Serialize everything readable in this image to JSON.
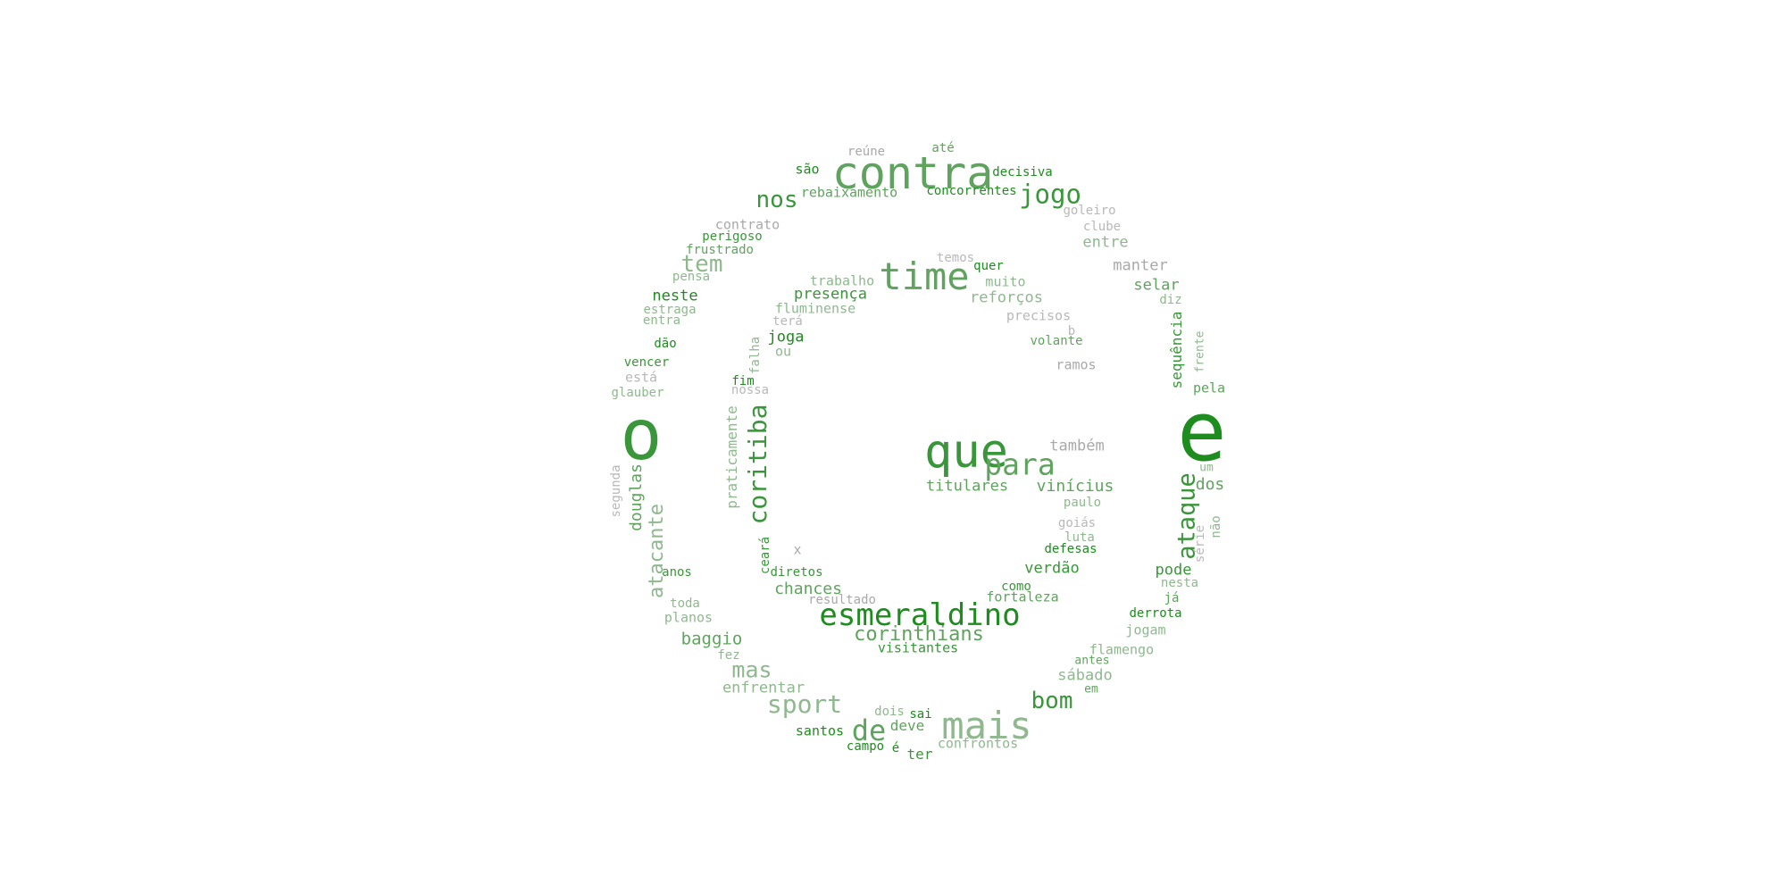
{
  "palette": {
    "g1": "#1e8c1e",
    "g2": "#3a963a",
    "g3": "#5fa35f",
    "g4": "#8fb88f",
    "g5": "#a9a9a9",
    "g6": "#b8b8b8"
  },
  "words": [
    {
      "t": "o",
      "c": "g2"
    },
    {
      "t": "e",
      "c": "g1"
    },
    {
      "t": "que",
      "c": "g2"
    },
    {
      "t": "contra",
      "c": "g3"
    },
    {
      "t": "time",
      "c": "g3"
    },
    {
      "t": "esmeraldino",
      "c": "g1"
    },
    {
      "t": "mais",
      "c": "g4"
    },
    {
      "t": "para",
      "c": "g3"
    },
    {
      "t": "de",
      "c": "g3"
    },
    {
      "t": "jogo",
      "c": "g2"
    },
    {
      "t": "nos",
      "c": "g2"
    },
    {
      "t": "tem",
      "c": "g4"
    },
    {
      "t": "coritiba",
      "c": "g2"
    },
    {
      "t": "ataque",
      "c": "g2"
    },
    {
      "t": "sport",
      "c": "g4"
    },
    {
      "t": "bom",
      "c": "g2"
    },
    {
      "t": "mas",
      "c": "g4"
    },
    {
      "t": "corinthians",
      "c": "g3"
    },
    {
      "t": "atacante",
      "c": "g4"
    },
    {
      "t": "douglas",
      "c": "g3"
    },
    {
      "t": "baggio",
      "c": "g3"
    },
    {
      "t": "chances",
      "c": "g3"
    },
    {
      "t": "enfrentar",
      "c": "g4"
    },
    {
      "t": "titulares",
      "c": "g3"
    },
    {
      "t": "vinícius",
      "c": "g3"
    },
    {
      "t": "presença",
      "c": "g2"
    },
    {
      "t": "reforços",
      "c": "g4"
    },
    {
      "t": "também",
      "c": "g5"
    },
    {
      "t": "verdão",
      "c": "g2"
    },
    {
      "t": "sábado",
      "c": "g4"
    },
    {
      "t": "entre",
      "c": "g4"
    },
    {
      "t": "manter",
      "c": "g5"
    },
    {
      "t": "selar",
      "c": "g3"
    },
    {
      "t": "dos",
      "c": "g3"
    },
    {
      "t": "pode",
      "c": "g2"
    },
    {
      "t": "sequência",
      "c": "g2"
    },
    {
      "t": "praticamente",
      "c": "g4"
    },
    {
      "t": "neste",
      "c": "g1"
    },
    {
      "t": "joga",
      "c": "g1"
    },
    {
      "t": "deve",
      "c": "g3"
    },
    {
      "t": "confrontos",
      "c": "g4"
    },
    {
      "t": "santos",
      "c": "g1"
    },
    {
      "t": "ter",
      "c": "g2"
    },
    {
      "t": "jogam",
      "c": "g4"
    },
    {
      "t": "flamengo",
      "c": "g4"
    },
    {
      "t": "fortaleza",
      "c": "g3"
    },
    {
      "t": "visitantes",
      "c": "g2"
    },
    {
      "t": "fluminense",
      "c": "g4"
    },
    {
      "t": "trabalho",
      "c": "g4"
    },
    {
      "t": "muito",
      "c": "g4"
    },
    {
      "t": "volante",
      "c": "g3"
    },
    {
      "t": "derrota",
      "c": "g1"
    },
    {
      "t": "paulo",
      "c": "g4"
    },
    {
      "t": "defesas",
      "c": "g1"
    },
    {
      "t": "rebaixamento",
      "c": "g3"
    },
    {
      "t": "concorrentes",
      "c": "g1"
    },
    {
      "t": "decisiva",
      "c": "g1"
    },
    {
      "t": "contrato",
      "c": "g5"
    },
    {
      "t": "perigoso",
      "c": "g2"
    },
    {
      "t": "frustrado",
      "c": "g3"
    },
    {
      "t": "pensa",
      "c": "g4"
    },
    {
      "t": "estraga",
      "c": "g4"
    },
    {
      "t": "entra",
      "c": "g4"
    },
    {
      "t": "dão",
      "c": "g1"
    },
    {
      "t": "vencer",
      "c": "g2"
    },
    {
      "t": "está",
      "c": "g6"
    },
    {
      "t": "glauber",
      "c": "g4"
    },
    {
      "t": "segunda",
      "c": "g6"
    },
    {
      "t": "anos",
      "c": "g2"
    },
    {
      "t": "toda",
      "c": "g4"
    },
    {
      "t": "planos",
      "c": "g4"
    },
    {
      "t": "fez",
      "c": "g4"
    },
    {
      "t": "diretos",
      "c": "g2"
    },
    {
      "t": "resultado",
      "c": "g5"
    },
    {
      "t": "como",
      "c": "g2"
    },
    {
      "t": "antes",
      "c": "g3"
    },
    {
      "t": "em",
      "c": "g3"
    },
    {
      "t": "dois",
      "c": "g4"
    },
    {
      "t": "sai",
      "c": "g1"
    },
    {
      "t": "campo",
      "c": "g1"
    },
    {
      "t": "é",
      "c": "g1"
    },
    {
      "t": "são",
      "c": "g1"
    },
    {
      "t": "reúne",
      "c": "g5"
    },
    {
      "t": "até",
      "c": "g3"
    },
    {
      "t": "goleiro",
      "c": "g6"
    },
    {
      "t": "clube",
      "c": "g6"
    },
    {
      "t": "temos",
      "c": "g6"
    },
    {
      "t": "quer",
      "c": "g1"
    },
    {
      "t": "precisos",
      "c": "g6"
    },
    {
      "t": "b",
      "c": "g6"
    },
    {
      "t": "ramos",
      "c": "g5"
    },
    {
      "t": "diz",
      "c": "g4"
    },
    {
      "t": "frente",
      "c": "g4"
    },
    {
      "t": "pela",
      "c": "g3"
    },
    {
      "t": "um",
      "c": "g4"
    },
    {
      "t": "não",
      "c": "g4"
    },
    {
      "t": "série",
      "c": "g6"
    },
    {
      "t": "nesta",
      "c": "g4"
    },
    {
      "t": "já",
      "c": "g3"
    },
    {
      "t": "terá",
      "c": "g6"
    },
    {
      "t": "ou",
      "c": "g4"
    },
    {
      "t": "falha",
      "c": "g4"
    },
    {
      "t": "fim",
      "c": "g1"
    },
    {
      "t": "nossa",
      "c": "g6"
    },
    {
      "t": "goiás",
      "c": "g6"
    },
    {
      "t": "luta",
      "c": "g4"
    },
    {
      "t": "x",
      "c": "g5"
    },
    {
      "t": "ceará",
      "c": "g2"
    }
  ]
}
